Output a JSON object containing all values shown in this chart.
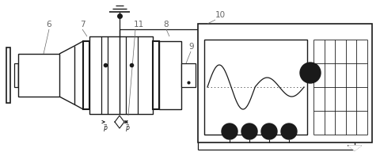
{
  "bg_color": "#ffffff",
  "line_color": "#1a1a1a",
  "label_color": "#666666",
  "fig_width": 4.81,
  "fig_height": 1.92,
  "dpi": 100
}
